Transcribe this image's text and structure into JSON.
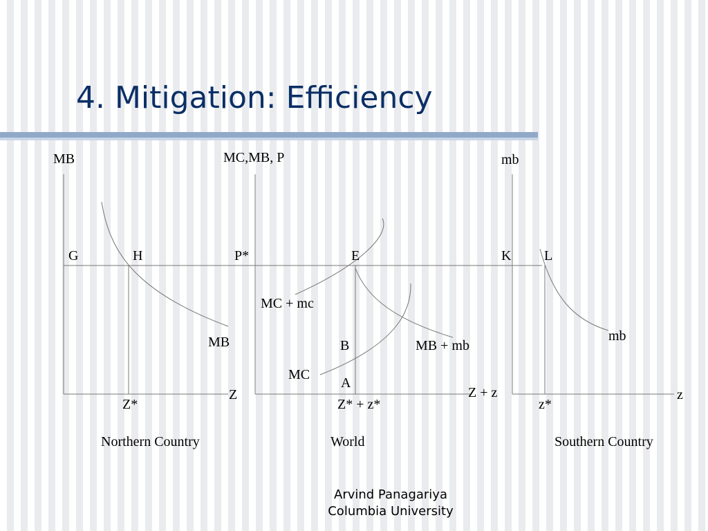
{
  "slide": {
    "title": "4. Mitigation: Efficiency"
  },
  "north": {
    "y_axis": "MB",
    "x_axis": "Z",
    "point_g": "G",
    "point_h": "H",
    "curve": "MB",
    "quantity": "Z*",
    "caption": "Northern Country"
  },
  "world": {
    "y_axis": "MC,MB, P",
    "price": "P*",
    "point_e": "E",
    "curve_mc_sum": "MC + mc",
    "point_b": "B",
    "curve_mb_sum": "MB + mb",
    "curve_mc": "MC",
    "point_a": "A",
    "x_axis": "Z + z",
    "quantity": "Z* + z*",
    "caption": "World"
  },
  "south": {
    "y_axis": "mb",
    "point_k": "K",
    "point_l": "L",
    "curve": "mb",
    "x_axis": "z",
    "quantity": "z*",
    "caption": "Southern Country"
  },
  "footer": {
    "author": "Arvind Panagariya",
    "institution": "Columbia University"
  },
  "colors": {
    "title": "#0b2f66",
    "rule": "#90a9c8"
  }
}
